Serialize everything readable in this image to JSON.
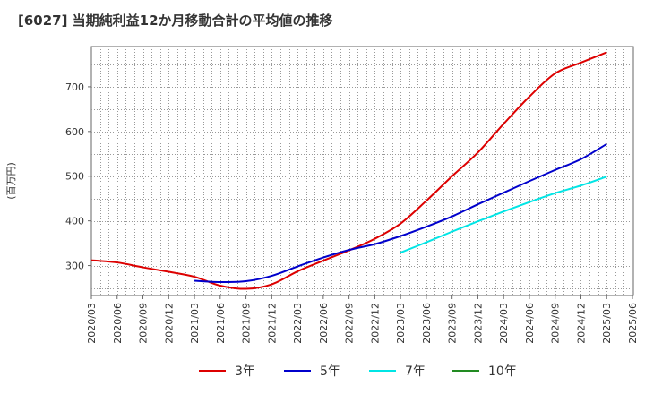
{
  "chart_data": {
    "type": "line",
    "title": "[6027]  当期純利益12か月移動合計の平均値の推移",
    "ylabel": "(百万円)",
    "xlabel": "",
    "x": [
      "2020/03",
      "2020/06",
      "2020/09",
      "2020/12",
      "2021/03",
      "2021/06",
      "2021/09",
      "2021/12",
      "2022/03",
      "2022/06",
      "2022/09",
      "2022/12",
      "2023/03",
      "2023/06",
      "2023/09",
      "2023/12",
      "2024/03",
      "2024/06",
      "2024/09",
      "2024/12",
      "2025/03",
      "2025/06"
    ],
    "yticks": [
      300,
      400,
      500,
      600,
      700
    ],
    "ylim": [
      233,
      790
    ],
    "grid": true,
    "legend_position": "bottom",
    "series": [
      {
        "name": "3年",
        "color": "#dd0000",
        "values": [
          312,
          307,
          296,
          286,
          275,
          255,
          248,
          258,
          287,
          311,
          334,
          360,
          394,
          445,
          500,
          553,
          617,
          678,
          730,
          754,
          777,
          null
        ]
      },
      {
        "name": "5年",
        "color": "#0000cc",
        "values": [
          null,
          null,
          null,
          null,
          266,
          263,
          265,
          277,
          298,
          318,
          335,
          348,
          366,
          387,
          410,
          437,
          463,
          489,
          514,
          538,
          572,
          null
        ]
      },
      {
        "name": "7年",
        "color": "#00e5e5",
        "values": [
          null,
          null,
          null,
          null,
          null,
          null,
          null,
          null,
          null,
          null,
          null,
          null,
          329,
          352,
          376,
          399,
          421,
          442,
          462,
          479,
          499,
          null
        ]
      },
      {
        "name": "10年",
        "color": "#228b22",
        "values": [
          null,
          null,
          null,
          null,
          null,
          null,
          null,
          null,
          null,
          null,
          null,
          null,
          null,
          null,
          null,
          null,
          null,
          null,
          null,
          null,
          null,
          null
        ]
      }
    ]
  }
}
